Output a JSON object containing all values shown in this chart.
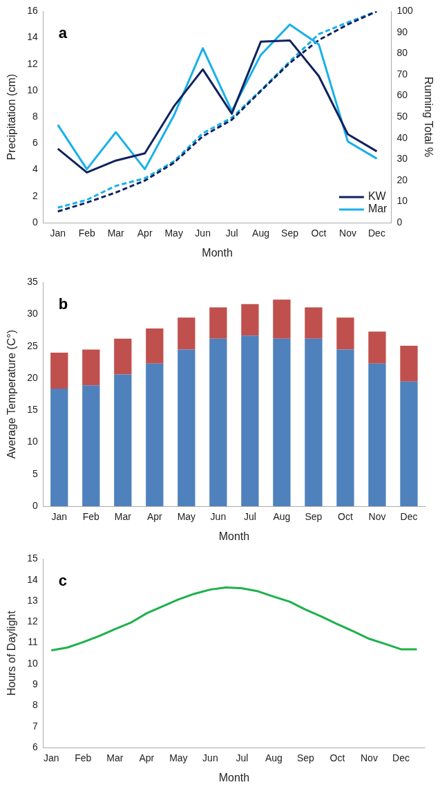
{
  "chart_data": [
    {
      "type": "line",
      "xlabel": "Month",
      "ylabel": "Precipitation (cm)",
      "y2label": "Running Total %",
      "annotations": [
        "a"
      ],
      "categories": [
        "Jan",
        "Feb",
        "Mar",
        "Apr",
        "May",
        "Jun",
        "Jul",
        "Aug",
        "Sep",
        "Oct",
        "Nov",
        "Dec"
      ],
      "ylim": [
        0,
        16
      ],
      "yticks": [
        0,
        2,
        4,
        6,
        8,
        10,
        12,
        14,
        16
      ],
      "y2lim": [
        0,
        100
      ],
      "y2ticks": [
        0,
        10,
        20,
        30,
        40,
        50,
        60,
        70,
        80,
        90,
        100
      ],
      "grid": false,
      "legend": "bottom right",
      "marker": "none",
      "series": [
        {
          "name": "KW",
          "color": "#10225e",
          "values": [
            5.6,
            3.8,
            4.7,
            5.25,
            8.8,
            11.6,
            8.25,
            13.7,
            13.8,
            11.1,
            6.7,
            5.4
          ]
        },
        {
          "name": "Mar",
          "color": "#17b0ea",
          "values": [
            7.4,
            4.05,
            6.85,
            4.05,
            8.1,
            13.2,
            8.45,
            12.7,
            15.0,
            13.5,
            6.15,
            4.85
          ]
        },
        {
          "color": "#10225e",
          "axis": "y2",
          "line_style": "dashed",
          "values": [
            5.3,
            9.5,
            14.3,
            19.9,
            28.3,
            40.9,
            48.7,
            62.3,
            75.6,
            86.4,
            93.8,
            100
          ]
        },
        {
          "color": "#17b0ea",
          "axis": "y2",
          "line_style": "dashed",
          "values": [
            7.1,
            10.8,
            17.4,
            21.0,
            29.0,
            42.3,
            49.7,
            62.6,
            76.3,
            89.2,
            94.8,
            100
          ]
        }
      ]
    },
    {
      "type": "bar",
      "xlabel": "Month",
      "ylabel": "Average Temperature (C°)",
      "annotations": [
        "b"
      ],
      "stacked": true,
      "categories": [
        "Jan",
        "Feb",
        "Mar",
        "Apr",
        "May",
        "Jun",
        "Jul",
        "Aug",
        "Sep",
        "Oct",
        "Nov",
        "Dec"
      ],
      "ylim": [
        0,
        35
      ],
      "yticks": [
        0,
        5,
        10,
        15,
        20,
        25,
        30,
        35
      ],
      "grid": false,
      "legend": false,
      "series": [
        {
          "color": "#4f81bd",
          "values": [
            18.4,
            18.9,
            20.6,
            22.3,
            24.5,
            26.2,
            26.7,
            26.2,
            26.2,
            24.5,
            22.3,
            19.5
          ]
        },
        {
          "color": "#c0504d",
          "values": [
            5.6,
            5.6,
            5.6,
            5.5,
            5.0,
            4.9,
            4.9,
            6.1,
            4.9,
            5.0,
            5.0,
            5.6
          ]
        }
      ]
    },
    {
      "type": "line",
      "xlabel": "Month",
      "ylabel": "Hours of Daylight",
      "annotations": [
        "c"
      ],
      "categories": [
        "Jan",
        null,
        "Feb",
        null,
        "Mar",
        null,
        "Apr",
        null,
        "May",
        null,
        "Jun",
        null,
        "Jul",
        null,
        "Aug",
        null,
        "Sep",
        null,
        "Oct",
        null,
        "Nov",
        null,
        "Dec",
        null
      ],
      "ylim": [
        6,
        15
      ],
      "yticks": [
        6,
        7,
        8,
        9,
        10,
        11,
        12,
        13,
        14,
        15
      ],
      "grid": false,
      "legend": false,
      "marker": "none",
      "series": [
        {
          "color": "#1db14b",
          "values": [
            10.64,
            10.77,
            11.03,
            11.32,
            11.65,
            11.96,
            12.41,
            12.74,
            13.07,
            13.34,
            13.54,
            13.64,
            13.6,
            13.46,
            13.2,
            12.96,
            12.58,
            12.25,
            11.89,
            11.55,
            11.19,
            10.95,
            10.69,
            10.69
          ]
        }
      ]
    }
  ]
}
